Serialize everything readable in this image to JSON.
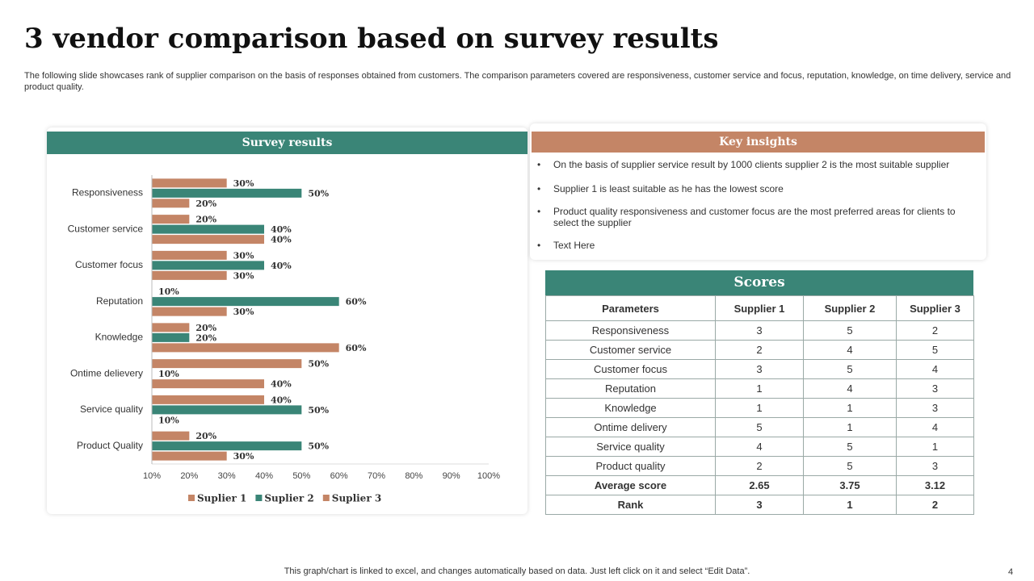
{
  "title": "3 vendor comparison based on survey results",
  "description": "The following slide showcases rank of supplier comparison on the basis of responses obtained from customers. The comparison parameters covered are responsiveness, customer service and focus, reputation, knowledge, on time delivery, service and product quality.",
  "chart_data": {
    "type": "hbar",
    "title": "Survey results",
    "categories": [
      "Responsiveness",
      "Customer service",
      "Customer focus",
      "Reputation",
      "Knowledge",
      "Ontime delievery",
      "Service quality",
      "Product Quality"
    ],
    "series": [
      {
        "name": "Suplier 1",
        "color": "#c48566",
        "values": [
          30,
          20,
          30,
          10,
          20,
          50,
          40,
          20
        ],
        "value_labels": [
          "30%",
          "20%",
          "30%",
          "10%",
          "20%",
          "50%",
          "40%",
          "20%"
        ]
      },
      {
        "name": "Suplier 2",
        "color": "#3a8577",
        "values": [
          50,
          40,
          40,
          60,
          20,
          10,
          50,
          50
        ],
        "value_labels": [
          "50%",
          "40%",
          "40%",
          "60%",
          "20%",
          "10%",
          "50%",
          "50%"
        ]
      },
      {
        "name": "Suplier 3",
        "color": "#c48566",
        "values": [
          20,
          40,
          30,
          30,
          60,
          40,
          10,
          30
        ],
        "value_labels": [
          "20%",
          "40%",
          "30%",
          "30%",
          "60%",
          "40%",
          "10%",
          "30%"
        ]
      }
    ],
    "xlim": [
      10,
      100
    ],
    "xticks": [
      {
        "value": 10,
        "label": "10%"
      },
      {
        "value": 20,
        "label": "20%"
      },
      {
        "value": 30,
        "label": "30%"
      },
      {
        "value": 40,
        "label": "40%"
      },
      {
        "value": 50,
        "label": "50%"
      },
      {
        "value": 60,
        "label": "60%"
      },
      {
        "value": 70,
        "label": "70%"
      },
      {
        "value": 80,
        "label": "80%"
      },
      {
        "value": 90,
        "label": "90%"
      },
      {
        "value": 100,
        "label": "100%"
      }
    ],
    "legend": "bottom"
  },
  "insights": {
    "title": "Key insights",
    "bullets": [
      "On the basis of supplier service result by 1000 clients supplier 2 is the most suitable supplier",
      "Supplier 1 is least suitable as he has the lowest score",
      "Product quality responsiveness and customer focus are the most preferred areas for clients to select the supplier",
      "Text Here"
    ]
  },
  "table": {
    "title": "Scores",
    "header": [
      "Parameters",
      "Supplier 1",
      "Supplier 2",
      "Supplier 3"
    ],
    "rows": [
      [
        "Responsiveness",
        3,
        5,
        2
      ],
      [
        "Customer service",
        2,
        4,
        5
      ],
      [
        "Customer focus",
        3,
        5,
        4
      ],
      [
        "Reputation",
        1,
        4,
        3
      ],
      [
        "Knowledge",
        1,
        1,
        3
      ],
      [
        "Ontime delivery",
        5,
        1,
        4
      ],
      [
        "Service  quality",
        4,
        5,
        1
      ],
      [
        "Product quality",
        2,
        5,
        3
      ],
      [
        "Average score",
        2.65,
        3.75,
        3.12
      ],
      [
        "Rank",
        3,
        1,
        2
      ]
    ]
  },
  "footer": "This graph/chart is linked to excel,  and changes automatically based on data. Just left click on it and select “Edit Data”.",
  "page_number": 4
}
